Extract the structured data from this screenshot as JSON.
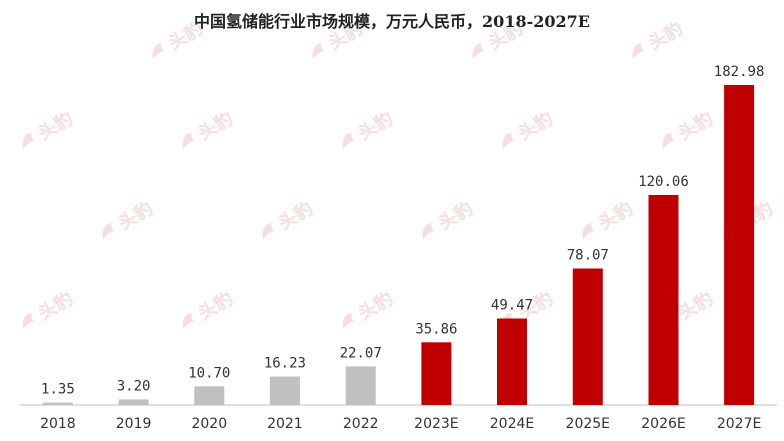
{
  "colors": {
    "historical": "#c0c0c0",
    "forecast": "#c00000",
    "axis": "#bfbfbf",
    "text": "#333333",
    "watermark": "#f6dede"
  },
  "watermark": {
    "label": "头豹",
    "icon": "leopard-logo-icon"
  },
  "chart_data": {
    "type": "bar",
    "title": "中国氢储能行业市场规模，万元人民币，2018-2027E",
    "xlabel": "",
    "ylabel": "",
    "ylim": [
      0,
      200
    ],
    "grid": false,
    "legend": "none",
    "categories": [
      "2018",
      "2019",
      "2020",
      "2021",
      "2022",
      "2023E",
      "2024E",
      "2025E",
      "2026E",
      "2027E"
    ],
    "values": [
      1.35,
      3.2,
      10.7,
      16.23,
      22.07,
      35.86,
      49.47,
      78.07,
      120.06,
      182.98
    ],
    "value_labels": [
      "1.35",
      "3.20",
      "10.70",
      "16.23",
      "22.07",
      "35.86",
      "49.47",
      "78.07",
      "120.06",
      "182.98"
    ],
    "forecast": [
      false,
      false,
      false,
      false,
      false,
      true,
      true,
      true,
      true,
      true
    ]
  }
}
